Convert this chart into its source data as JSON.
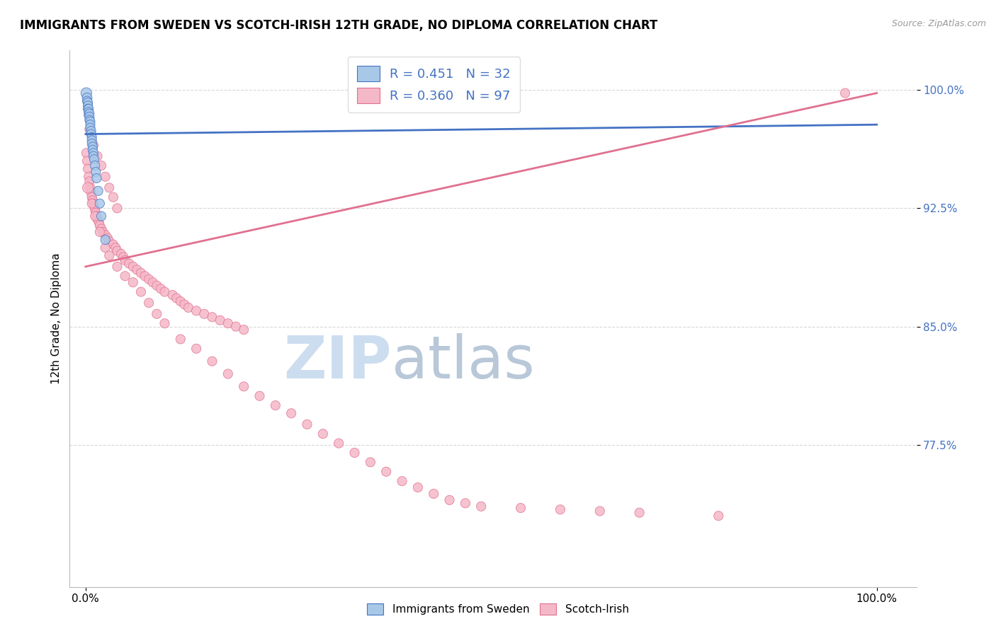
{
  "title": "IMMIGRANTS FROM SWEDEN VS SCOTCH-IRISH 12TH GRADE, NO DIPLOMA CORRELATION CHART",
  "source_text": "Source: ZipAtlas.com",
  "ylabel": "12th Grade, No Diploma",
  "y_tick_values": [
    0.775,
    0.85,
    0.925,
    1.0
  ],
  "y_tick_labels": [
    "77.5%",
    "85.0%",
    "92.5%",
    "100.0%"
  ],
  "x_tick_values": [
    0.0,
    1.0
  ],
  "x_tick_labels": [
    "0.0%",
    "100.0%"
  ],
  "xlim": [
    -0.02,
    1.05
  ],
  "ylim": [
    0.685,
    1.025
  ],
  "blue_color": "#a8c8e8",
  "blue_edge_color": "#4472c4",
  "blue_line_color": "#4472c4",
  "pink_color": "#f5b8c8",
  "pink_edge_color": "#e07090",
  "pink_line_color": "#e07090",
  "watermark_zip": "ZIP",
  "watermark_atlas": "atlas",
  "watermark_color": "#ccddf0",
  "legend_label_blue": "R = 0.451   N = 32",
  "legend_label_pink": "R = 0.360   N = 97",
  "legend_fontsize": 13,
  "title_fontsize": 12,
  "tick_fontsize": 11,
  "ylabel_fontsize": 11,
  "sweden_x": [
    0.001,
    0.002,
    0.002,
    0.003,
    0.003,
    0.003,
    0.004,
    0.004,
    0.004,
    0.005,
    0.005,
    0.005,
    0.006,
    0.006,
    0.006,
    0.007,
    0.007,
    0.008,
    0.008,
    0.008,
    0.009,
    0.009,
    0.01,
    0.01,
    0.011,
    0.012,
    0.013,
    0.014,
    0.016,
    0.018,
    0.02,
    0.025
  ],
  "sweden_y": [
    0.998,
    0.995,
    0.993,
    0.992,
    0.99,
    0.988,
    0.988,
    0.986,
    0.984,
    0.985,
    0.983,
    0.981,
    0.98,
    0.978,
    0.976,
    0.974,
    0.972,
    0.97,
    0.968,
    0.966,
    0.964,
    0.962,
    0.96,
    0.958,
    0.956,
    0.952,
    0.948,
    0.944,
    0.936,
    0.928,
    0.92,
    0.905
  ],
  "sweden_sizes": [
    120,
    100,
    90,
    90,
    90,
    90,
    90,
    90,
    90,
    90,
    90,
    90,
    90,
    90,
    90,
    90,
    90,
    90,
    90,
    90,
    90,
    90,
    90,
    90,
    90,
    90,
    90,
    90,
    90,
    90,
    90,
    90
  ],
  "scotch_x": [
    0.001,
    0.002,
    0.003,
    0.004,
    0.005,
    0.006,
    0.007,
    0.008,
    0.009,
    0.01,
    0.011,
    0.012,
    0.013,
    0.014,
    0.015,
    0.017,
    0.018,
    0.02,
    0.022,
    0.025,
    0.028,
    0.03,
    0.035,
    0.038,
    0.04,
    0.045,
    0.048,
    0.05,
    0.055,
    0.06,
    0.065,
    0.07,
    0.075,
    0.08,
    0.085,
    0.09,
    0.095,
    0.1,
    0.11,
    0.115,
    0.12,
    0.125,
    0.13,
    0.14,
    0.15,
    0.16,
    0.17,
    0.18,
    0.19,
    0.2,
    0.005,
    0.01,
    0.015,
    0.02,
    0.025,
    0.03,
    0.035,
    0.04,
    0.003,
    0.008,
    0.012,
    0.018,
    0.025,
    0.03,
    0.04,
    0.05,
    0.06,
    0.07,
    0.08,
    0.09,
    0.1,
    0.12,
    0.14,
    0.16,
    0.18,
    0.2,
    0.22,
    0.24,
    0.26,
    0.28,
    0.3,
    0.32,
    0.34,
    0.36,
    0.38,
    0.4,
    0.42,
    0.44,
    0.46,
    0.48,
    0.5,
    0.55,
    0.6,
    0.65,
    0.7,
    0.8,
    0.96
  ],
  "scotch_y": [
    0.96,
    0.955,
    0.95,
    0.945,
    0.942,
    0.938,
    0.935,
    0.932,
    0.93,
    0.928,
    0.926,
    0.924,
    0.922,
    0.92,
    0.918,
    0.916,
    0.914,
    0.912,
    0.91,
    0.908,
    0.906,
    0.904,
    0.902,
    0.9,
    0.898,
    0.896,
    0.894,
    0.892,
    0.89,
    0.888,
    0.886,
    0.884,
    0.882,
    0.88,
    0.878,
    0.876,
    0.874,
    0.872,
    0.87,
    0.868,
    0.866,
    0.864,
    0.862,
    0.86,
    0.858,
    0.856,
    0.854,
    0.852,
    0.85,
    0.848,
    0.975,
    0.965,
    0.958,
    0.952,
    0.945,
    0.938,
    0.932,
    0.925,
    0.938,
    0.928,
    0.92,
    0.91,
    0.9,
    0.895,
    0.888,
    0.882,
    0.878,
    0.872,
    0.865,
    0.858,
    0.852,
    0.842,
    0.836,
    0.828,
    0.82,
    0.812,
    0.806,
    0.8,
    0.795,
    0.788,
    0.782,
    0.776,
    0.77,
    0.764,
    0.758,
    0.752,
    0.748,
    0.744,
    0.74,
    0.738,
    0.736,
    0.735,
    0.734,
    0.733,
    0.732,
    0.73,
    0.998
  ],
  "scotch_sizes": [
    90,
    90,
    90,
    90,
    90,
    90,
    90,
    90,
    90,
    90,
    90,
    90,
    90,
    90,
    90,
    90,
    90,
    90,
    90,
    90,
    90,
    90,
    90,
    90,
    90,
    90,
    90,
    90,
    90,
    90,
    90,
    90,
    90,
    90,
    90,
    90,
    90,
    90,
    90,
    90,
    90,
    90,
    90,
    90,
    90,
    90,
    90,
    90,
    90,
    90,
    90,
    90,
    90,
    90,
    90,
    90,
    90,
    90,
    120,
    90,
    90,
    90,
    90,
    90,
    90,
    90,
    90,
    90,
    90,
    90,
    90,
    90,
    90,
    90,
    90,
    90,
    90,
    90,
    90,
    90,
    90,
    90,
    90,
    90,
    90,
    90,
    90,
    90,
    90,
    90,
    90,
    90,
    90,
    90,
    90,
    90,
    90
  ],
  "sweden_trend": [
    0.0,
    1.0,
    0.972,
    0.978
  ],
  "scotch_trend": [
    0.0,
    1.0,
    0.888,
    0.998
  ]
}
